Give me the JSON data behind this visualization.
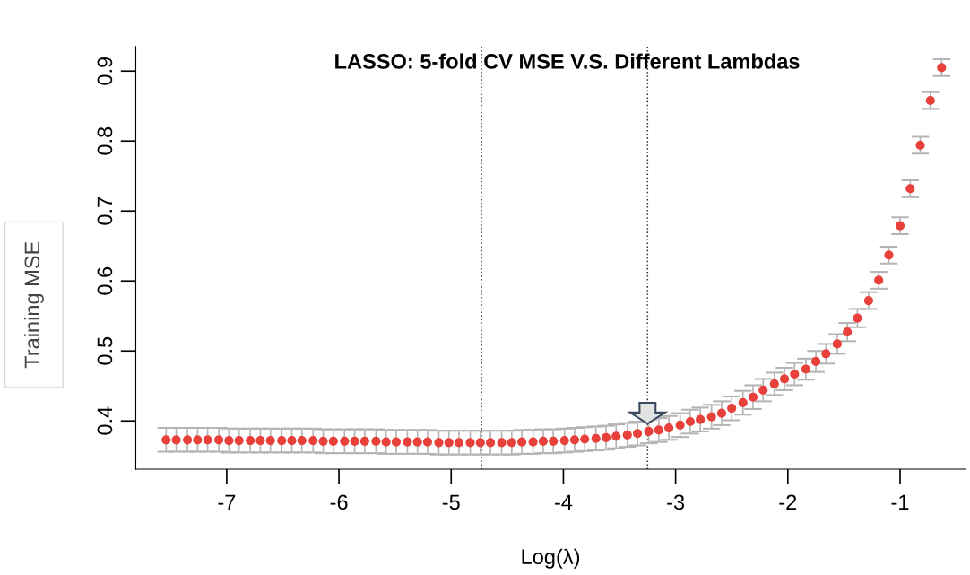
{
  "chart_data": {
    "type": "scatter",
    "title": "LASSO: 5-fold CV MSE V.S. Different Lambdas",
    "xlabel": "Log(λ)",
    "ylabel": "Training MSE",
    "x": [
      -7.54,
      -7.45,
      -7.35,
      -7.26,
      -7.17,
      -7.07,
      -6.98,
      -6.89,
      -6.79,
      -6.7,
      -6.61,
      -6.51,
      -6.42,
      -6.33,
      -6.23,
      -6.14,
      -6.05,
      -5.95,
      -5.86,
      -5.77,
      -5.67,
      -5.58,
      -5.49,
      -5.39,
      -5.3,
      -5.21,
      -5.11,
      -5.02,
      -4.93,
      -4.83,
      -4.74,
      -4.65,
      -4.55,
      -4.46,
      -4.37,
      -4.27,
      -4.18,
      -4.09,
      -3.99,
      -3.9,
      -3.81,
      -3.71,
      -3.62,
      -3.53,
      -3.43,
      -3.34,
      -3.24,
      -3.15,
      -3.06,
      -2.96,
      -2.87,
      -2.78,
      -2.68,
      -2.59,
      -2.5,
      -2.4,
      -2.31,
      -2.22,
      -2.12,
      -2.03,
      -1.94,
      -1.84,
      -1.75,
      -1.66,
      -1.56,
      -1.47,
      -1.38,
      -1.28,
      -1.19,
      -1.1,
      -1.0,
      -0.91,
      -0.82,
      -0.73,
      -0.63
    ],
    "series": [
      {
        "color": "#e8403a",
        "values": [
          0.373,
          0.373,
          0.373,
          0.373,
          0.373,
          0.373,
          0.372,
          0.372,
          0.372,
          0.372,
          0.372,
          0.372,
          0.372,
          0.372,
          0.372,
          0.371,
          0.371,
          0.371,
          0.371,
          0.371,
          0.371,
          0.37,
          0.37,
          0.37,
          0.37,
          0.37,
          0.369,
          0.369,
          0.369,
          0.369,
          0.369,
          0.369,
          0.369,
          0.369,
          0.37,
          0.37,
          0.371,
          0.371,
          0.372,
          0.373,
          0.374,
          0.375,
          0.376,
          0.378,
          0.38,
          0.382,
          0.385,
          0.387,
          0.39,
          0.394,
          0.399,
          0.402,
          0.406,
          0.411,
          0.418,
          0.426,
          0.434,
          0.444,
          0.453,
          0.46,
          0.467,
          0.474,
          0.485,
          0.496,
          0.51,
          0.527,
          0.547,
          0.572,
          0.601,
          0.637,
          0.679,
          0.732,
          0.794,
          0.858,
          0.905
        ],
        "errors": [
          0.017,
          0.017,
          0.017,
          0.017,
          0.017,
          0.017,
          0.017,
          0.017,
          0.017,
          0.017,
          0.017,
          0.017,
          0.017,
          0.017,
          0.017,
          0.017,
          0.017,
          0.017,
          0.017,
          0.017,
          0.017,
          0.017,
          0.017,
          0.017,
          0.017,
          0.017,
          0.017,
          0.017,
          0.017,
          0.017,
          0.017,
          0.017,
          0.017,
          0.017,
          0.017,
          0.017,
          0.017,
          0.017,
          0.017,
          0.017,
          0.017,
          0.017,
          0.017,
          0.017,
          0.017,
          0.017,
          0.017,
          0.017,
          0.017,
          0.017,
          0.017,
          0.017,
          0.017,
          0.017,
          0.017,
          0.017,
          0.017,
          0.016,
          0.016,
          0.016,
          0.016,
          0.015,
          0.015,
          0.014,
          0.014,
          0.013,
          0.013,
          0.012,
          0.012,
          0.012,
          0.012,
          0.012,
          0.012,
          0.012,
          0.012
        ]
      }
    ],
    "xlim": [
      -7.81,
      -0.42
    ],
    "xticks": [
      -7,
      -6,
      -5,
      -4,
      -3,
      -2,
      -1
    ],
    "ylim": [
      0.331,
      0.935
    ],
    "yticks": [
      0.4,
      0.5,
      0.6,
      0.7,
      0.8,
      0.9
    ],
    "ref_lines": [
      {
        "axis": "x",
        "value": -4.73,
        "color": "#333333",
        "line_style": "dotted"
      },
      {
        "axis": "x",
        "value": -3.25,
        "color": "#333333",
        "line_style": "dotted"
      }
    ],
    "marker": "circle",
    "grid": false,
    "legend": false
  }
}
